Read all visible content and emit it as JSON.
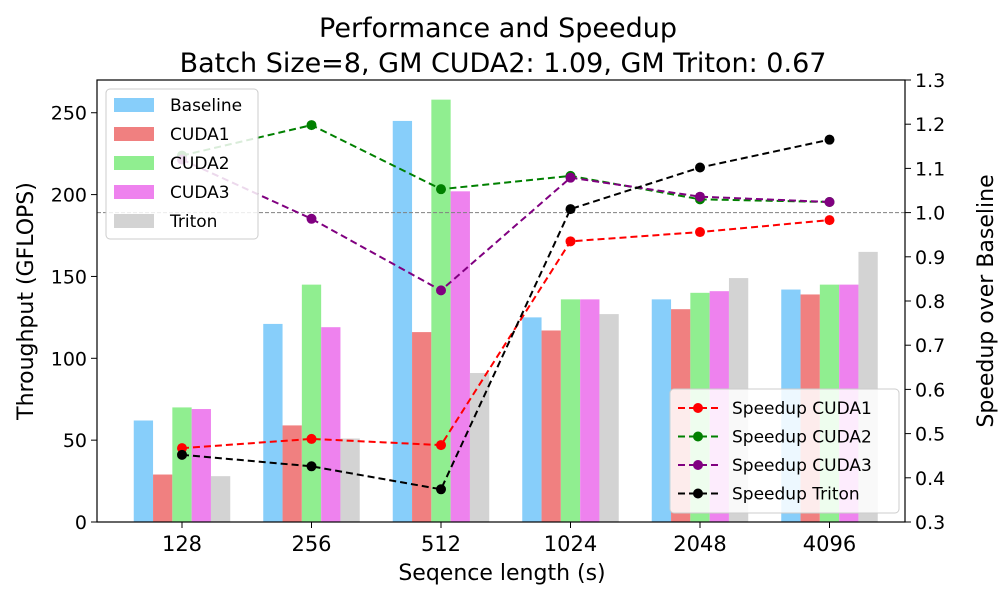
{
  "chart_data": {
    "type": "bar",
    "title": "Performance and Speedup",
    "subtitle": "Batch Size=8, GM CUDA2: 1.09, GM Triton: 0.67",
    "xlabel": "Seqence length (s)",
    "ylabel": "Throughput (GFLOPS)",
    "y2label": "Speedup over Baseline",
    "categories": [
      "128",
      "256",
      "512",
      "1024",
      "2048",
      "4096"
    ],
    "ylim": [
      0,
      270
    ],
    "y2lim": [
      0.3,
      1.3
    ],
    "yticks": [
      0,
      50,
      100,
      150,
      200,
      250
    ],
    "y2ticks": [
      0.3,
      0.4,
      0.5,
      0.6,
      0.7,
      0.8,
      0.9,
      1.0,
      1.1,
      1.2,
      1.3
    ],
    "reference_line": 1.0,
    "bar_series": [
      {
        "name": "Baseline",
        "color": "#87CEFA",
        "values": [
          62,
          121,
          245,
          125,
          136,
          142
        ]
      },
      {
        "name": "CUDA1",
        "color": "#F08080",
        "values": [
          29,
          59,
          116,
          117,
          130,
          139
        ]
      },
      {
        "name": "CUDA2",
        "color": "#90EE90",
        "values": [
          70,
          145,
          258,
          136,
          140,
          145
        ]
      },
      {
        "name": "CUDA3",
        "color": "#EE82EE",
        "values": [
          69,
          119,
          202,
          136,
          141,
          145
        ]
      },
      {
        "name": "Triton",
        "color": "#D3D3D3",
        "values": [
          28,
          51,
          91,
          127,
          149,
          165
        ]
      }
    ],
    "line_series": [
      {
        "name": "Speedup CUDA1",
        "color": "#FF0000",
        "values": [
          0.467,
          0.488,
          0.474,
          0.935,
          0.956,
          0.983
        ]
      },
      {
        "name": "Speedup CUDA2",
        "color": "#008000",
        "values": [
          1.129,
          1.198,
          1.053,
          1.083,
          1.03,
          1.024
        ]
      },
      {
        "name": "Speedup CUDA3",
        "color": "#800080",
        "values": [
          1.12,
          0.986,
          0.824,
          1.079,
          1.036,
          1.024
        ]
      },
      {
        "name": "Speedup Triton",
        "color": "#000000",
        "values": [
          0.452,
          0.426,
          0.374,
          1.008,
          1.102,
          1.165
        ]
      }
    ],
    "legend_bars_position": "upper-left",
    "legend_lines_position": "lower-right",
    "grid": false
  }
}
